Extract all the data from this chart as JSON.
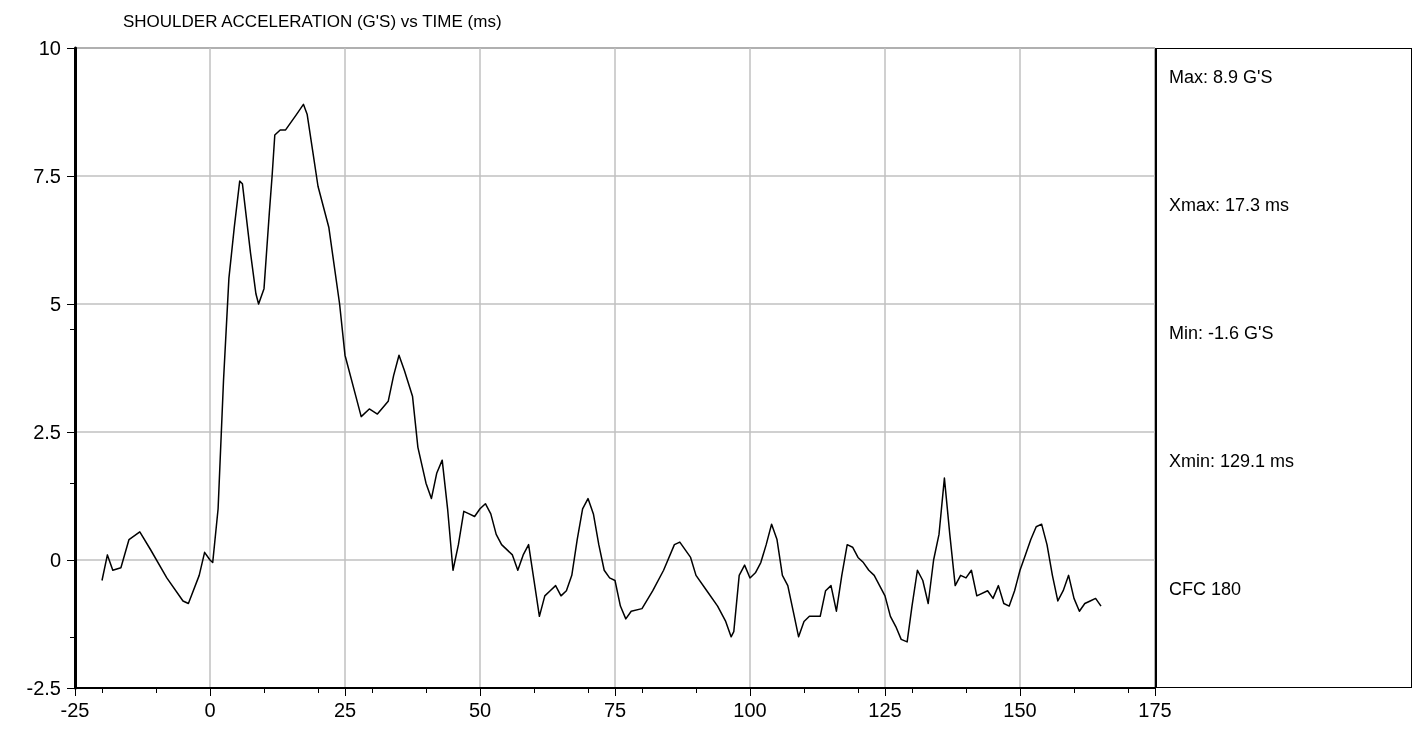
{
  "chart_data": {
    "type": "line",
    "title": "SHOULDER ACCELERATION (G'S) vs TIME (ms)",
    "x": [
      -20,
      -19,
      -18,
      -16.5,
      -15,
      -13,
      -11,
      -8,
      -5,
      -4,
      -2,
      -1,
      0,
      0.5,
      1.5,
      2.5,
      3.5,
      4.5,
      5.5,
      6,
      7.5,
      8.5,
      9,
      10,
      11,
      11.5,
      12,
      13,
      14,
      16,
      17.3,
      18,
      19,
      20,
      22,
      24,
      25,
      27,
      28,
      29.5,
      31,
      33,
      34,
      35,
      36,
      37.5,
      38.5,
      40,
      41,
      42,
      43,
      44,
      45,
      46,
      47,
      48,
      49,
      50,
      51,
      52,
      53,
      54,
      56,
      57,
      58,
      59,
      60,
      61,
      62,
      63,
      64,
      65,
      66,
      67,
      68,
      69,
      70,
      71,
      72,
      73,
      74,
      75,
      76,
      77,
      78,
      80,
      82,
      84,
      86,
      87,
      89,
      90,
      92,
      94,
      95.5,
      96.5,
      97,
      98,
      99,
      100,
      101,
      102,
      103,
      104,
      105,
      106,
      107,
      108,
      109,
      110,
      111,
      113,
      114,
      115,
      116,
      117,
      118,
      119,
      120,
      121,
      122,
      123,
      124,
      125,
      126,
      127,
      128,
      129.1,
      130,
      131,
      132,
      133,
      134,
      135,
      136,
      137,
      138,
      139,
      140,
      141,
      142,
      144,
      145,
      146,
      147,
      148,
      149,
      150,
      151,
      152,
      153,
      154,
      155,
      156,
      157,
      158,
      159,
      160,
      161,
      162,
      163,
      164,
      165
    ],
    "series": [
      {
        "color": "#000000",
        "values": [
          -0.4,
          0.1,
          -0.2,
          -0.15,
          0.4,
          0.55,
          0.2,
          -0.35,
          -0.8,
          -0.85,
          -0.3,
          0.15,
          0,
          -0.05,
          1,
          3.5,
          5.5,
          6.5,
          7.4,
          7.35,
          6,
          5.2,
          5,
          5.3,
          6.8,
          7.5,
          8.3,
          8.4,
          8.4,
          8.7,
          8.9,
          8.7,
          8,
          7.3,
          6.5,
          5,
          4,
          3.2,
          2.8,
          2.95,
          2.85,
          3.1,
          3.6,
          4,
          3.7,
          3.2,
          2.2,
          1.5,
          1.2,
          1.7,
          1.95,
          1,
          -0.2,
          0.3,
          0.95,
          0.9,
          0.85,
          1,
          1.1,
          0.9,
          0.5,
          0.3,
          0.1,
          -0.2,
          0.1,
          0.3,
          -0.4,
          -1.1,
          -0.7,
          -0.6,
          -0.5,
          -0.7,
          -0.6,
          -0.3,
          0.4,
          1,
          1.2,
          0.9,
          0.3,
          -0.2,
          -0.35,
          -0.4,
          -0.9,
          -1.15,
          -1,
          -0.95,
          -0.6,
          -0.2,
          0.3,
          0.35,
          0.05,
          -0.3,
          -0.6,
          -0.9,
          -1.2,
          -1.5,
          -1.4,
          -0.3,
          -0.1,
          -0.35,
          -0.25,
          -0.05,
          0.3,
          0.7,
          0.4,
          -0.3,
          -0.5,
          -1,
          -1.5,
          -1.2,
          -1.1,
          -1.1,
          -0.6,
          -0.5,
          -1,
          -0.3,
          0.3,
          0.25,
          0.05,
          -0.05,
          -0.2,
          -0.3,
          -0.5,
          -0.7,
          -1.1,
          -1.3,
          -1.55,
          -1.6,
          -0.9,
          -0.2,
          -0.4,
          -0.85,
          0,
          0.5,
          1.6,
          0.5,
          -0.5,
          -0.3,
          -0.35,
          -0.2,
          -0.7,
          -0.6,
          -0.75,
          -0.5,
          -0.85,
          -0.9,
          -0.6,
          -0.2,
          0.1,
          0.4,
          0.65,
          0.7,
          0.3,
          -0.3,
          -0.8,
          -0.6,
          -0.3,
          -0.75,
          -1,
          -0.85,
          -0.8,
          -0.75,
          -0.9
        ]
      }
    ],
    "xlim": [
      -25,
      175
    ],
    "xticks": [
      -25,
      0,
      25,
      50,
      75,
      100,
      125,
      150,
      175
    ],
    "ylim": [
      -2.5,
      10
    ],
    "yticks": [
      -2.5,
      0,
      2.5,
      5,
      7.5,
      10
    ],
    "grid": true,
    "marker": "none",
    "line_style": "solid",
    "annotations": [
      "Max: 8.9 G'S",
      "Xmax: 17.3 ms",
      "Min: -1.6 G'S",
      "Xmin: 129.1 ms",
      "CFC 180"
    ]
  }
}
